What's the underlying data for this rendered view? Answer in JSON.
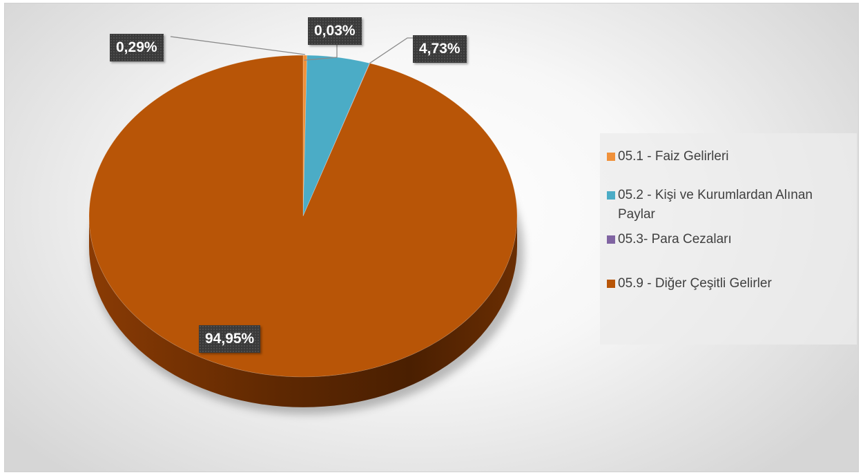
{
  "chart_data": {
    "type": "pie",
    "categories": [
      "05.1 - Faiz Gelirleri",
      "05.2 - Kişi ve Kurumlardan Alınan Paylar",
      "05.3- Para Cezaları",
      "05.9 - Diğer Çeşitli Gelirler"
    ],
    "values": [
      0.29,
      4.73,
      0.03,
      94.95
    ],
    "labels": [
      "0,29%",
      "4,73%",
      "0,03%",
      "94,95%"
    ],
    "colors": [
      "#F0913A",
      "#4BACC6",
      "#8064A2",
      "#B85507"
    ],
    "legend_position": "right"
  }
}
